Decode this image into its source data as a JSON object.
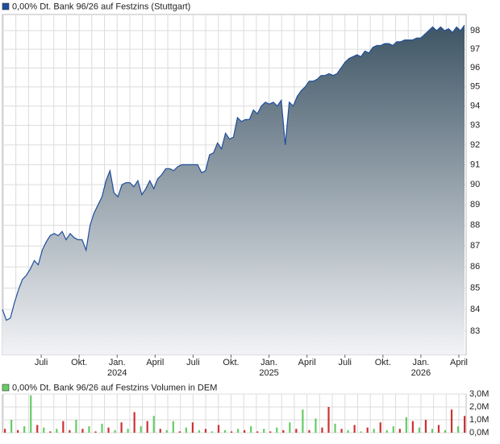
{
  "chart_data": [
    {
      "type": "area",
      "title": "0,00% Dt. Bank 96/26 auf Festzins (Stuttgart)",
      "note": "1 Tick = 1 Woche",
      "log": true,
      "grid": true,
      "xlim": [
        "2023-04",
        "2026-04"
      ],
      "xticks": [
        {
          "value": "2023-07",
          "label": "Juli"
        },
        {
          "value": "2023-10",
          "label": "Okt."
        },
        {
          "value": "2024-01",
          "label": "Jan."
        },
        {
          "value": "2024-04",
          "label": "April"
        },
        {
          "value": "2024-07",
          "label": "Juli"
        },
        {
          "value": "2024-10",
          "label": "Okt."
        },
        {
          "value": "2025-01",
          "label": "Jan."
        },
        {
          "value": "2025-04",
          "label": "April"
        },
        {
          "value": "2025-07",
          "label": "Juli"
        },
        {
          "value": "2025-10",
          "label": "Okt."
        },
        {
          "value": "2026-01",
          "label": "Jan."
        },
        {
          "value": "2026-04",
          "label": "April"
        }
      ],
      "year_labels": [
        {
          "value": "2024-01",
          "label": "2024"
        },
        {
          "value": "2025-01",
          "label": "2025"
        },
        {
          "value": "2026-01",
          "label": "2026"
        }
      ],
      "ylim": [
        81.93,
        98.88
      ],
      "yticks": [
        83,
        84,
        85,
        86,
        87,
        88,
        89,
        90,
        91,
        92,
        93,
        94,
        95,
        96,
        97,
        98
      ],
      "series": [
        {
          "name": "0,00% Dt. Bank 96/26 auf Festzins (Stuttgart)",
          "color": "#1f4e9c",
          "values": [
            84.0,
            83.5,
            83.6,
            84.3,
            84.9,
            85.4,
            85.6,
            85.9,
            86.3,
            86.1,
            86.8,
            87.2,
            87.5,
            87.6,
            87.5,
            87.7,
            87.3,
            87.6,
            87.4,
            87.3,
            87.3,
            86.8,
            88.0,
            88.6,
            89.0,
            89.4,
            90.2,
            90.7,
            89.6,
            89.4,
            90.0,
            90.1,
            90.1,
            89.9,
            90.2,
            89.5,
            89.8,
            90.2,
            89.8,
            90.3,
            90.5,
            90.8,
            90.8,
            90.7,
            90.9,
            91.0,
            91.0,
            91.0,
            91.0,
            91.0,
            90.6,
            90.7,
            91.5,
            91.6,
            92.1,
            91.8,
            92.6,
            92.3,
            92.4,
            93.4,
            93.2,
            93.3,
            93.3,
            93.8,
            93.6,
            94.0,
            94.2,
            94.1,
            94.2,
            94.0,
            94.3,
            92.0,
            94.2,
            94.0,
            94.5,
            94.8,
            95.0,
            95.3,
            95.3,
            95.4,
            95.6,
            95.6,
            95.7,
            95.6,
            95.7,
            96.0,
            96.3,
            96.5,
            96.6,
            96.7,
            96.6,
            96.9,
            96.8,
            97.1,
            97.2,
            97.2,
            97.3,
            97.3,
            97.2,
            97.4,
            97.4,
            97.5,
            97.5,
            97.5,
            97.6,
            97.6,
            97.8,
            98.0,
            98.2,
            98.0,
            98.2,
            98.0,
            98.1,
            97.9,
            98.2,
            98.0,
            98.3
          ]
        }
      ]
    },
    {
      "type": "bar",
      "title": "0,00% Dt. Bank 96/26 auf Festzins Volumen in DEM",
      "legend_color": "#66cc66",
      "ylim": [
        0,
        3000000
      ],
      "yticks": [
        {
          "value": 0,
          "label": "0,0M"
        },
        {
          "value": 1000000,
          "label": "1,0M"
        },
        {
          "value": 2000000,
          "label": "2,0M"
        },
        {
          "value": 3000000,
          "label": "3,0M"
        }
      ],
      "values": [
        300000,
        1000000,
        200000,
        500000,
        2900000,
        600000,
        400000,
        100000,
        300000,
        900000,
        200000,
        1000000,
        300000,
        500000,
        100000,
        700000,
        400000,
        200000,
        800000,
        300000,
        1600000,
        500000,
        900000,
        1300000,
        300000,
        200000,
        900000,
        100000,
        400000,
        800000,
        200000,
        300000,
        100000,
        600000,
        200000,
        100000,
        300000,
        200000,
        500000,
        100000,
        300000,
        100000,
        400000,
        200000,
        800000,
        300000,
        1800000,
        200000,
        1100000,
        400000,
        2000000,
        700000,
        300000,
        200000,
        600000,
        100000,
        400000,
        300000,
        800000,
        200000,
        500000,
        300000,
        1200000,
        900000,
        400000,
        1000000,
        300000,
        600000,
        200000,
        1800000,
        500000,
        1300000
      ],
      "bar_colors": [
        "#cc3333",
        "#66cc66",
        "#cc3333",
        "#66cc66",
        "#66cc66",
        "#cc3333",
        "#66cc66",
        "#cc3333",
        "#66cc66",
        "#cc3333",
        "#cc3333",
        "#66cc66",
        "#cc3333",
        "#66cc66",
        "#cc3333",
        "#66cc66",
        "#cc3333",
        "#66cc66",
        "#cc3333",
        "#66cc66",
        "#cc3333",
        "#66cc66",
        "#cc3333",
        "#66cc66",
        "#cc3333",
        "#66cc66",
        "#66cc66",
        "#cc3333",
        "#66cc66",
        "#cc3333",
        "#66cc66",
        "#cc3333",
        "#66cc66",
        "#cc3333",
        "#66cc66",
        "#cc3333",
        "#66cc66",
        "#cc3333",
        "#66cc66",
        "#cc3333",
        "#66cc66",
        "#cc3333",
        "#66cc66",
        "#cc3333",
        "#66cc66",
        "#cc3333",
        "#66cc66",
        "#cc3333",
        "#66cc66",
        "#cc3333",
        "#cc3333",
        "#66cc66",
        "#cc3333",
        "#66cc66",
        "#cc3333",
        "#66cc66",
        "#cc3333",
        "#66cc66",
        "#cc3333",
        "#66cc66",
        "#66cc66",
        "#cc3333",
        "#66cc66",
        "#cc3333",
        "#66cc66",
        "#cc3333",
        "#66cc66",
        "#cc3333",
        "#66cc66",
        "#cc3333",
        "#66cc66",
        "#cc3333"
      ]
    }
  ]
}
